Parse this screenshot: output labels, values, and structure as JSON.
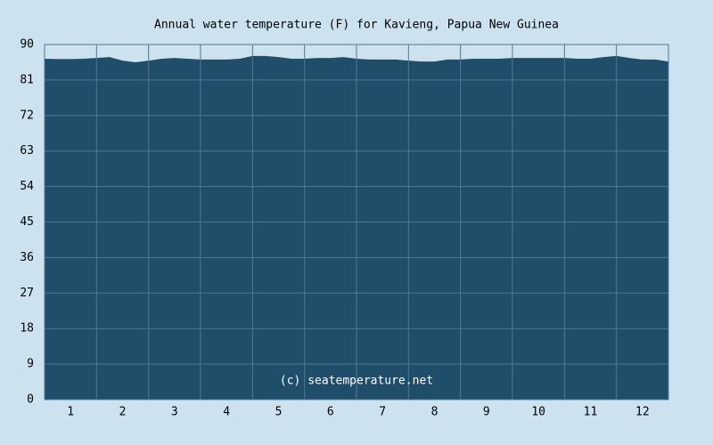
{
  "chart_data": {
    "type": "area",
    "title": "Annual water temperature (F) for Kavieng, Papua New Guinea",
    "annotation": "(c) seatemperature.net",
    "x": [
      0.5,
      0.75,
      1,
      1.25,
      1.5,
      1.75,
      2,
      2.25,
      2.5,
      2.75,
      3,
      3.25,
      3.5,
      3.75,
      4,
      4.25,
      4.5,
      4.75,
      5,
      5.25,
      5.5,
      5.75,
      6,
      6.25,
      6.5,
      6.75,
      7,
      7.25,
      7.5,
      7.75,
      8,
      8.25,
      8.5,
      8.75,
      9,
      9.25,
      9.5,
      9.75,
      10,
      10.25,
      10.5,
      10.75,
      11,
      11.25,
      11.5,
      11.75,
      12,
      12.25,
      12.5
    ],
    "values": [
      86.4,
      86.3,
      86.3,
      86.4,
      86.6,
      86.8,
      85.9,
      85.5,
      85.9,
      86.4,
      86.6,
      86.4,
      86.2,
      86.2,
      86.2,
      86.4,
      87.1,
      87.1,
      86.8,
      86.4,
      86.4,
      86.6,
      86.6,
      86.8,
      86.4,
      86.2,
      86.2,
      86.2,
      85.9,
      85.7,
      85.7,
      86.2,
      86.2,
      86.4,
      86.4,
      86.4,
      86.6,
      86.6,
      86.6,
      86.6,
      86.6,
      86.4,
      86.4,
      86.8,
      87.1,
      86.6,
      86.2,
      86.2,
      85.7
    ],
    "color": "#1f4e6b",
    "xlim": [
      0.5,
      12.5
    ],
    "xticks": [
      1,
      2,
      3,
      4,
      5,
      6,
      7,
      8,
      9,
      10,
      11,
      12
    ],
    "ylim": [
      0,
      90
    ],
    "yticks": [
      0,
      9,
      18,
      27,
      36,
      45,
      54,
      63,
      72,
      81,
      90
    ],
    "grid": true
  }
}
